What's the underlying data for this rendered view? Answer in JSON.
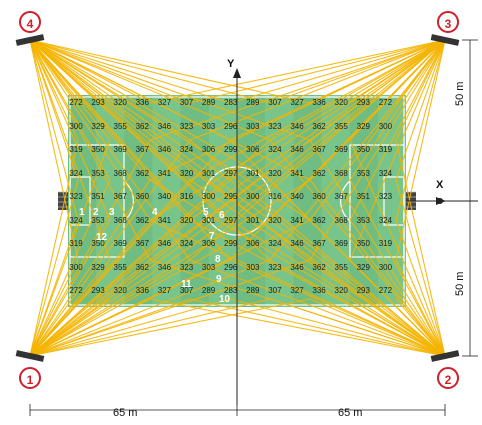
{
  "title": "",
  "axes": {
    "x_label": "X",
    "y_label": "Y"
  },
  "dimensions": {
    "left_span": "65 m",
    "right_span": "65 m",
    "upper_half": "50 m",
    "lower_half": "50 m"
  },
  "masts": [
    {
      "id": "4",
      "corner": "top-left"
    },
    {
      "id": "3",
      "corner": "top-right"
    },
    {
      "id": "1",
      "corner": "bottom-left"
    },
    {
      "id": "2",
      "corner": "bottom-right"
    }
  ],
  "illuminance_grid": [
    [
      "272",
      "293",
      "320",
      "336",
      "327",
      "307",
      "289",
      "283",
      "289",
      "307",
      "327",
      "336",
      "320",
      "293",
      "272"
    ],
    [
      "300",
      "329",
      "355",
      "362",
      "346",
      "323",
      "303",
      "296",
      "303",
      "323",
      "346",
      "362",
      "355",
      "329",
      "300"
    ],
    [
      "319",
      "350",
      "369",
      "367",
      "346",
      "324",
      "306",
      "299",
      "306",
      "324",
      "346",
      "367",
      "369",
      "350",
      "319"
    ],
    [
      "324",
      "353",
      "368",
      "362",
      "341",
      "320",
      "301",
      "297",
      "301",
      "320",
      "341",
      "362",
      "368",
      "353",
      "324"
    ],
    [
      "323",
      "351",
      "367",
      "360",
      "340",
      "316",
      "300",
      "295",
      "300",
      "316",
      "340",
      "360",
      "367",
      "351",
      "323"
    ],
    [
      "324",
      "353",
      "368",
      "362",
      "341",
      "320",
      "301",
      "297",
      "301",
      "320",
      "341",
      "362",
      "368",
      "353",
      "324"
    ],
    [
      "319",
      "350",
      "369",
      "367",
      "346",
      "324",
      "306",
      "299",
      "306",
      "324",
      "346",
      "367",
      "369",
      "350",
      "319"
    ],
    [
      "300",
      "329",
      "355",
      "362",
      "346",
      "323",
      "303",
      "296",
      "303",
      "323",
      "346",
      "362",
      "355",
      "329",
      "300"
    ],
    [
      "272",
      "293",
      "320",
      "336",
      "327",
      "307",
      "289",
      "283",
      "289",
      "307",
      "327",
      "336",
      "320",
      "293",
      "272"
    ]
  ],
  "beam_numbers": [
    "1",
    "2",
    "3",
    "4",
    "5",
    "6",
    "7",
    "8",
    "9",
    "10",
    "11",
    "12"
  ],
  "colors": {
    "pitch": "#78c58c",
    "beam": "#f5b400",
    "mast": "#d11f2a",
    "line": "#ffffff"
  }
}
